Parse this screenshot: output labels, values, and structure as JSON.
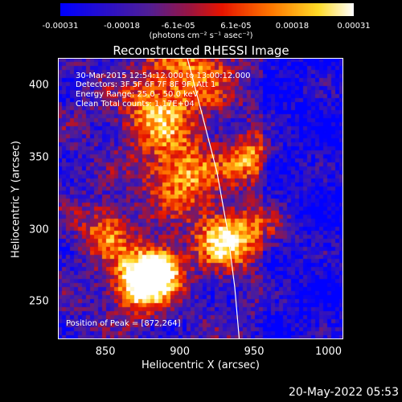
{
  "colorbar": {
    "ticks": [
      "-0.00031",
      "-0.00018",
      "-6.1e-05",
      "6.1e-05",
      "0.00018",
      "0.00031"
    ],
    "tick_values": [
      -0.00031,
      -0.00018,
      -6.1e-05,
      6.1e-05,
      0.00018,
      0.00031
    ],
    "range": [
      -0.00031,
      0.00031
    ],
    "unit": "(photons cm⁻² s⁻¹ asec⁻²)"
  },
  "chart_data": {
    "type": "heatmap",
    "title": "Reconstructed RHESSI Image",
    "xlabel": "Heliocentric X (arcsec)",
    "ylabel": "Heliocentric Y (arcsec)",
    "xlim": [
      818,
      1010
    ],
    "ylim": [
      224,
      419
    ],
    "x_ticks": [
      850,
      900,
      950,
      1000
    ],
    "y_ticks": [
      250,
      300,
      350,
      400
    ],
    "annotations": [
      "30-Mar-2015 12:54:12.000 to 13:00:12.000",
      "Detectors: 3F 5F 6F 7F 8F 9F, Att 1",
      "Energy Range: 25.0 - 50.0 keV",
      "Clean     Total counts: 1.17E+04"
    ],
    "peak_label": "Position of Peak = [872,264]",
    "peak": [
      872,
      264
    ],
    "limb_curve": [
      [
        905,
        419
      ],
      [
        915,
        380
      ],
      [
        925,
        340
      ],
      [
        932,
        300
      ],
      [
        937,
        260
      ],
      [
        940,
        224
      ]
    ]
  },
  "timestamp": "20-May-2022 05:53"
}
